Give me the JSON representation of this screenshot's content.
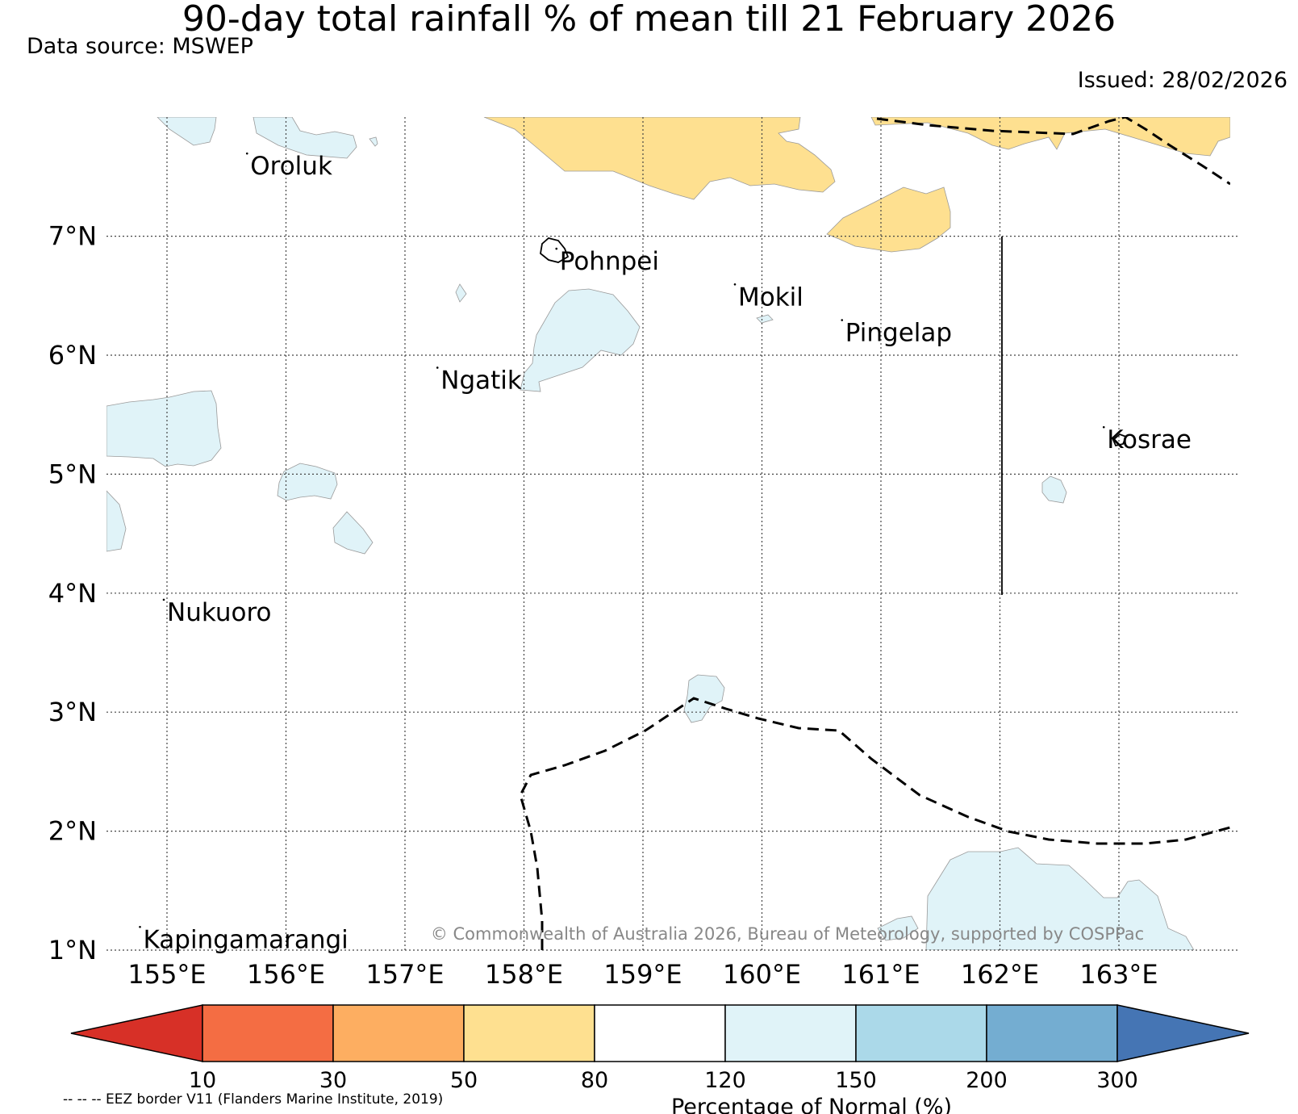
{
  "title": "90-day total rainfall % of mean till 21 February 2026",
  "data_source": "Data source: MSWEP",
  "issued": "Issued: 28/02/2026",
  "copyright": "© Commonwealth of Australia 2026, Bureau of Meteorology, supported by COSPPac",
  "footnote": "-- -- -- EEZ border V11 (Flanders Marine Institute, 2019)",
  "map": {
    "lon_range": [
      154.5,
      164.0
    ],
    "lat_range": [
      1.0,
      8.0
    ],
    "lon_labels": [
      "155°E",
      "156°E",
      "157°E",
      "158°E",
      "159°E",
      "160°E",
      "161°E",
      "162°E",
      "163°E"
    ],
    "lat_labels": [
      "7°N",
      "6°N",
      "5°N",
      "4°N",
      "3°N",
      "2°N",
      "1°N"
    ],
    "places": [
      {
        "name": "Oroluk",
        "lon": 155.7,
        "lat": 7.6
      },
      {
        "name": "Pohnpei",
        "lon": 158.3,
        "lat": 6.8
      },
      {
        "name": "Mokil",
        "lon": 159.8,
        "lat": 6.5
      },
      {
        "name": "Pingelap",
        "lon": 160.7,
        "lat": 6.2
      },
      {
        "name": "Ngatik",
        "lon": 157.3,
        "lat": 5.8
      },
      {
        "name": "Kosrae",
        "lon": 162.9,
        "lat": 5.3
      },
      {
        "name": "Nukuoro",
        "lon": 155.0,
        "lat": 3.85
      },
      {
        "name": "Kapingamarangi",
        "lon": 154.8,
        "lat": 1.1
      }
    ]
  },
  "legend": {
    "title": "Percentage of Normal (%)",
    "ticks": [
      "10",
      "30",
      "50",
      "80",
      "120",
      "150",
      "200",
      "300"
    ],
    "colors": [
      "#d73027",
      "#f46d43",
      "#fdae61",
      "#fee090",
      "#ffffff",
      "#e0f3f8",
      "#abd9e9",
      "#74add1",
      "#4575b4"
    ]
  }
}
